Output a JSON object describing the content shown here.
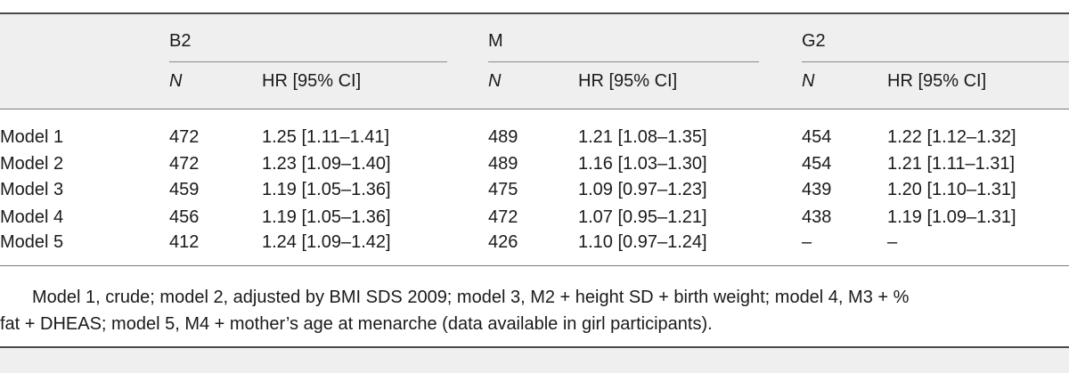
{
  "header": {
    "groups": [
      "B2",
      "M",
      "G2"
    ],
    "n_label": "N",
    "hr_label": "HR [95% CI]"
  },
  "rows": [
    {
      "model": "Model 1",
      "b2_n": "472",
      "b2_hr": "1.25 [1.11–1.41]",
      "m_n": "489",
      "m_hr": "1.21 [1.08–1.35]",
      "g2_n": "454",
      "g2_hr": "1.22 [1.12–1.32]"
    },
    {
      "model": "Model 2",
      "b2_n": "472",
      "b2_hr": "1.23 [1.09–1.40]",
      "m_n": "489",
      "m_hr": "1.16 [1.03–1.30]",
      "g2_n": "454",
      "g2_hr": "1.21 [1.11–1.31]"
    },
    {
      "model": "Model 3",
      "b2_n": "459",
      "b2_hr": "1.19 [1.05–1.36]",
      "m_n": "475",
      "m_hr": "1.09 [0.97–1.23]",
      "g2_n": "439",
      "g2_hr": "1.20 [1.10–1.31]"
    },
    {
      "model": "Model 4",
      "b2_n": "456",
      "b2_hr": "1.19 [1.05–1.36]",
      "m_n": "472",
      "m_hr": "1.07 [0.95–1.21]",
      "g2_n": "438",
      "g2_hr": "1.19 [1.09–1.31]"
    },
    {
      "model": "Model 5",
      "b2_n": "412",
      "b2_hr": "1.24 [1.09–1.42]",
      "m_n": "426",
      "m_hr": "1.10 [0.97–1.24]",
      "g2_n": "–",
      "g2_hr": "–"
    }
  ],
  "footnote": {
    "line1": "Model 1, crude; model 2, adjusted by BMI SDS 2009; model 3, M2 + height SD + birth weight; model 4, M3 + %",
    "line2": "fat + DHEAS; model 5, M4 + mother’s age at menarche (data available in girl participants)."
  }
}
